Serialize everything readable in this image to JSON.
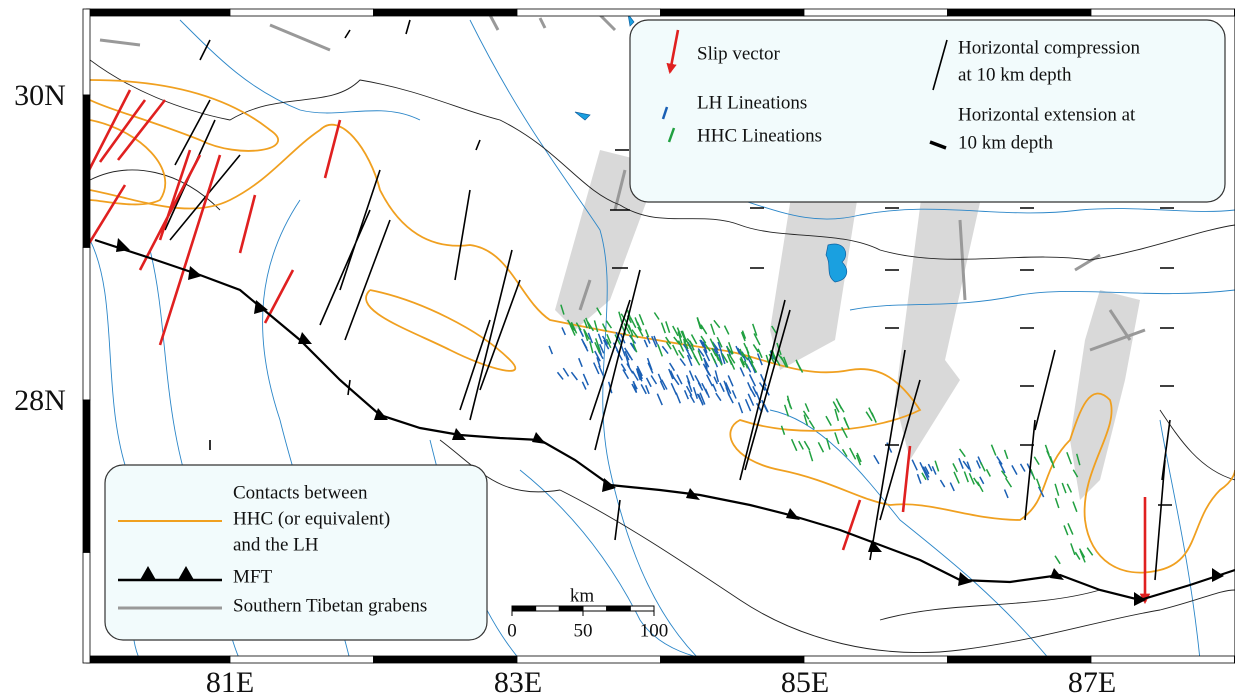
{
  "axes": {
    "latitude_labels": [
      "30N",
      "28N"
    ],
    "longitude_labels": [
      "81E",
      "83E",
      "85E",
      "87E"
    ]
  },
  "legend_top": {
    "slip_vector": "Slip vector",
    "lh_lineations": "LH Lineations",
    "hhc_lineations": "HHC Lineations",
    "compression": [
      "Horizontal compression",
      "at 10 km depth"
    ],
    "extension": [
      "Horizontal extension at",
      "10 km depth"
    ]
  },
  "legend_bottom": {
    "contacts": [
      "Contacts between",
      "HHC (or equivalent)",
      "and the LH"
    ],
    "mft": "MFT",
    "grabens": "Southern Tibetan grabens"
  },
  "scale_bar": {
    "unit": "km",
    "ticks": [
      0,
      50,
      100
    ]
  }
}
